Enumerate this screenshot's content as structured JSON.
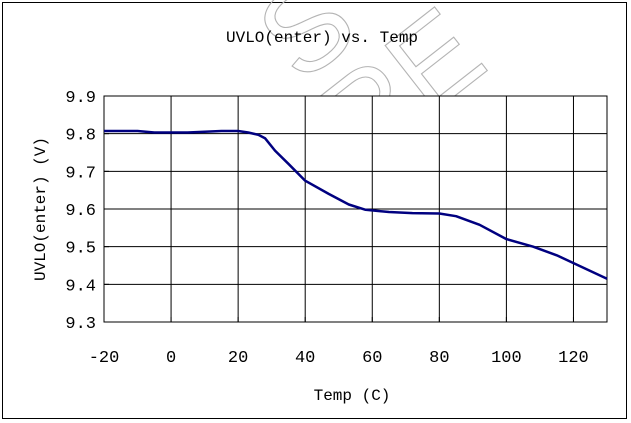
{
  "chart_data": {
    "type": "line",
    "title": "UVLO(enter) vs. Temp",
    "xlabel": "Temp (C)",
    "ylabel": "UVLO(enter) (V)",
    "xlim": [
      -20,
      130
    ],
    "ylim": [
      9.3,
      9.9
    ],
    "x_ticks": [
      "-20",
      "0",
      "20",
      "40",
      "60",
      "80",
      "100",
      "120"
    ],
    "y_ticks": [
      "9.3",
      "9.4",
      "9.5",
      "9.6",
      "9.7",
      "9.8",
      "9.9"
    ],
    "grid": true,
    "legend": "none",
    "series": [
      {
        "color": "#000080",
        "x": [
          -20,
          -10,
          -5,
          0,
          5,
          10,
          15,
          20,
          23,
          26,
          28,
          31,
          35,
          40,
          47,
          53,
          58,
          65,
          72,
          80,
          85,
          92,
          100,
          108,
          115,
          122,
          130
        ],
        "y": [
          9.807,
          9.807,
          9.803,
          9.803,
          9.803,
          9.805,
          9.807,
          9.807,
          9.803,
          9.797,
          9.788,
          9.755,
          9.72,
          9.675,
          9.64,
          9.612,
          9.598,
          9.592,
          9.589,
          9.588,
          9.581,
          9.558,
          9.52,
          9.5,
          9.477,
          9.448,
          9.415
        ]
      }
    ]
  },
  "watermark": [
    "S",
    "RE"
  ]
}
